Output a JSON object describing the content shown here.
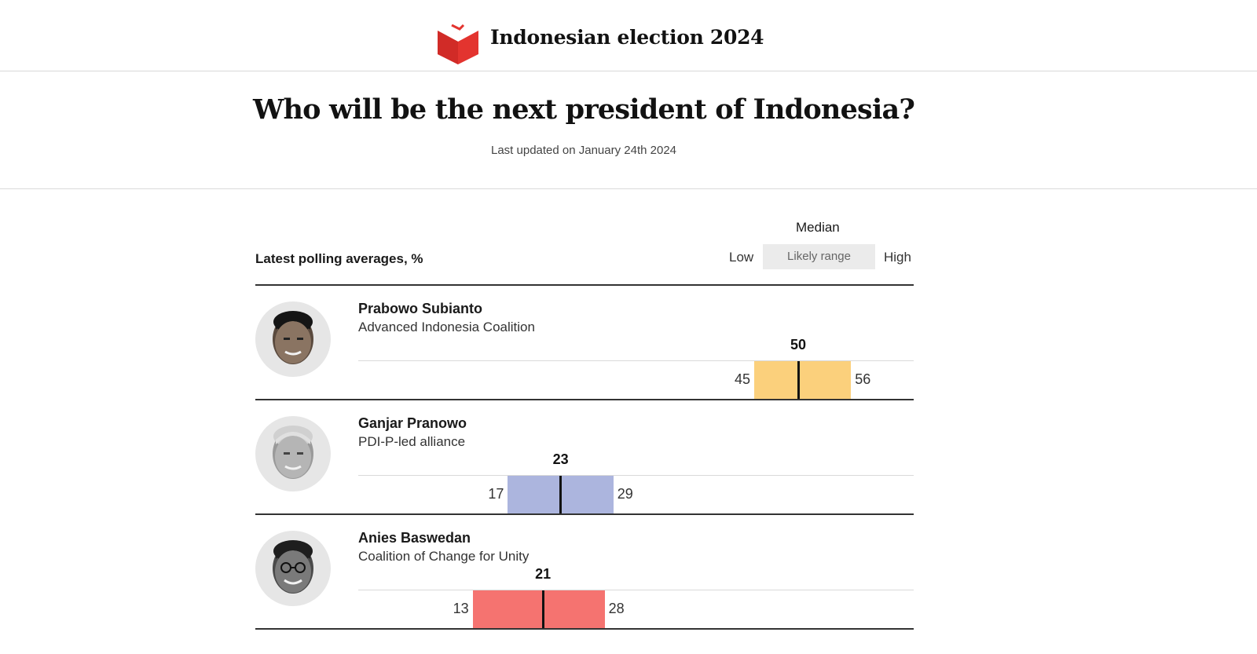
{
  "header": {
    "site_title": "Indonesian election 2024",
    "logo_icon": "ballot-box-icon",
    "brand_color": "#e3342f"
  },
  "headline": "Who will be the next president of Indonesia?",
  "updated": "Last updated on January 24th 2024",
  "legend": {
    "median": "Median",
    "low": "Low",
    "range": "Likely range",
    "high": "High"
  },
  "chart_data": {
    "type": "bar",
    "title": "Latest polling averages, %",
    "unit": "%",
    "xlim": [
      0,
      60
    ],
    "series": [
      {
        "name": "Prabowo Subianto",
        "party": "Advanced Indonesia Coalition",
        "low": 45,
        "median": 50,
        "high": 56,
        "color": "#fbd07c"
      },
      {
        "name": "Ganjar Pranowo",
        "party": "PDI-P-led alliance",
        "low": 17,
        "median": 23,
        "high": 29,
        "color": "#acb5de"
      },
      {
        "name": "Anies Baswedan",
        "party": "Coalition of Change for Unity",
        "low": 13,
        "median": 21,
        "high": 28,
        "color": "#f57370"
      }
    ]
  }
}
